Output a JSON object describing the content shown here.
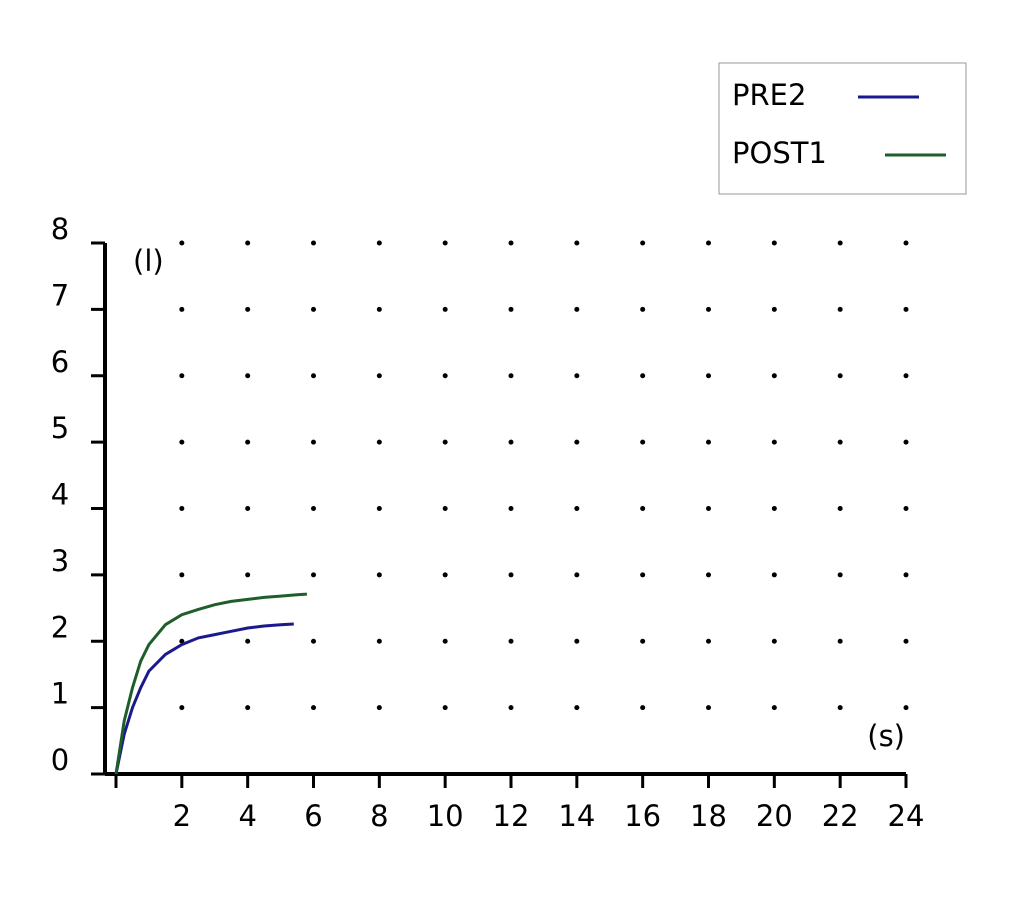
{
  "chart_data": {
    "type": "line",
    "x_label": "(s)",
    "y_label": "(l)",
    "xlim": [
      0,
      24
    ],
    "ylim": [
      0,
      8
    ],
    "xticks": [
      2,
      4,
      6,
      8,
      10,
      12,
      14,
      16,
      18,
      20,
      22,
      24
    ],
    "yticks": [
      0,
      1,
      2,
      3,
      4,
      5,
      6,
      7,
      8
    ],
    "grid": true,
    "legend": "upper right",
    "series": [
      {
        "name": "PRE2",
        "color": "#1a1a8c",
        "x": [
          0,
          0.25,
          0.5,
          0.75,
          1,
          1.5,
          2,
          2.5,
          3,
          3.5,
          4,
          4.5,
          5,
          5.4
        ],
        "values": [
          0,
          0.6,
          1.0,
          1.3,
          1.55,
          1.8,
          1.95,
          2.05,
          2.1,
          2.15,
          2.2,
          2.23,
          2.25,
          2.26
        ]
      },
      {
        "name": "POST1",
        "color": "#1e5e2a",
        "x": [
          0,
          0.25,
          0.5,
          0.75,
          1,
          1.5,
          2,
          2.5,
          3,
          3.5,
          4,
          4.5,
          5,
          5.5,
          5.8
        ],
        "values": [
          0,
          0.8,
          1.3,
          1.7,
          1.95,
          2.25,
          2.4,
          2.48,
          2.55,
          2.6,
          2.63,
          2.66,
          2.68,
          2.7,
          2.71
        ]
      }
    ]
  }
}
